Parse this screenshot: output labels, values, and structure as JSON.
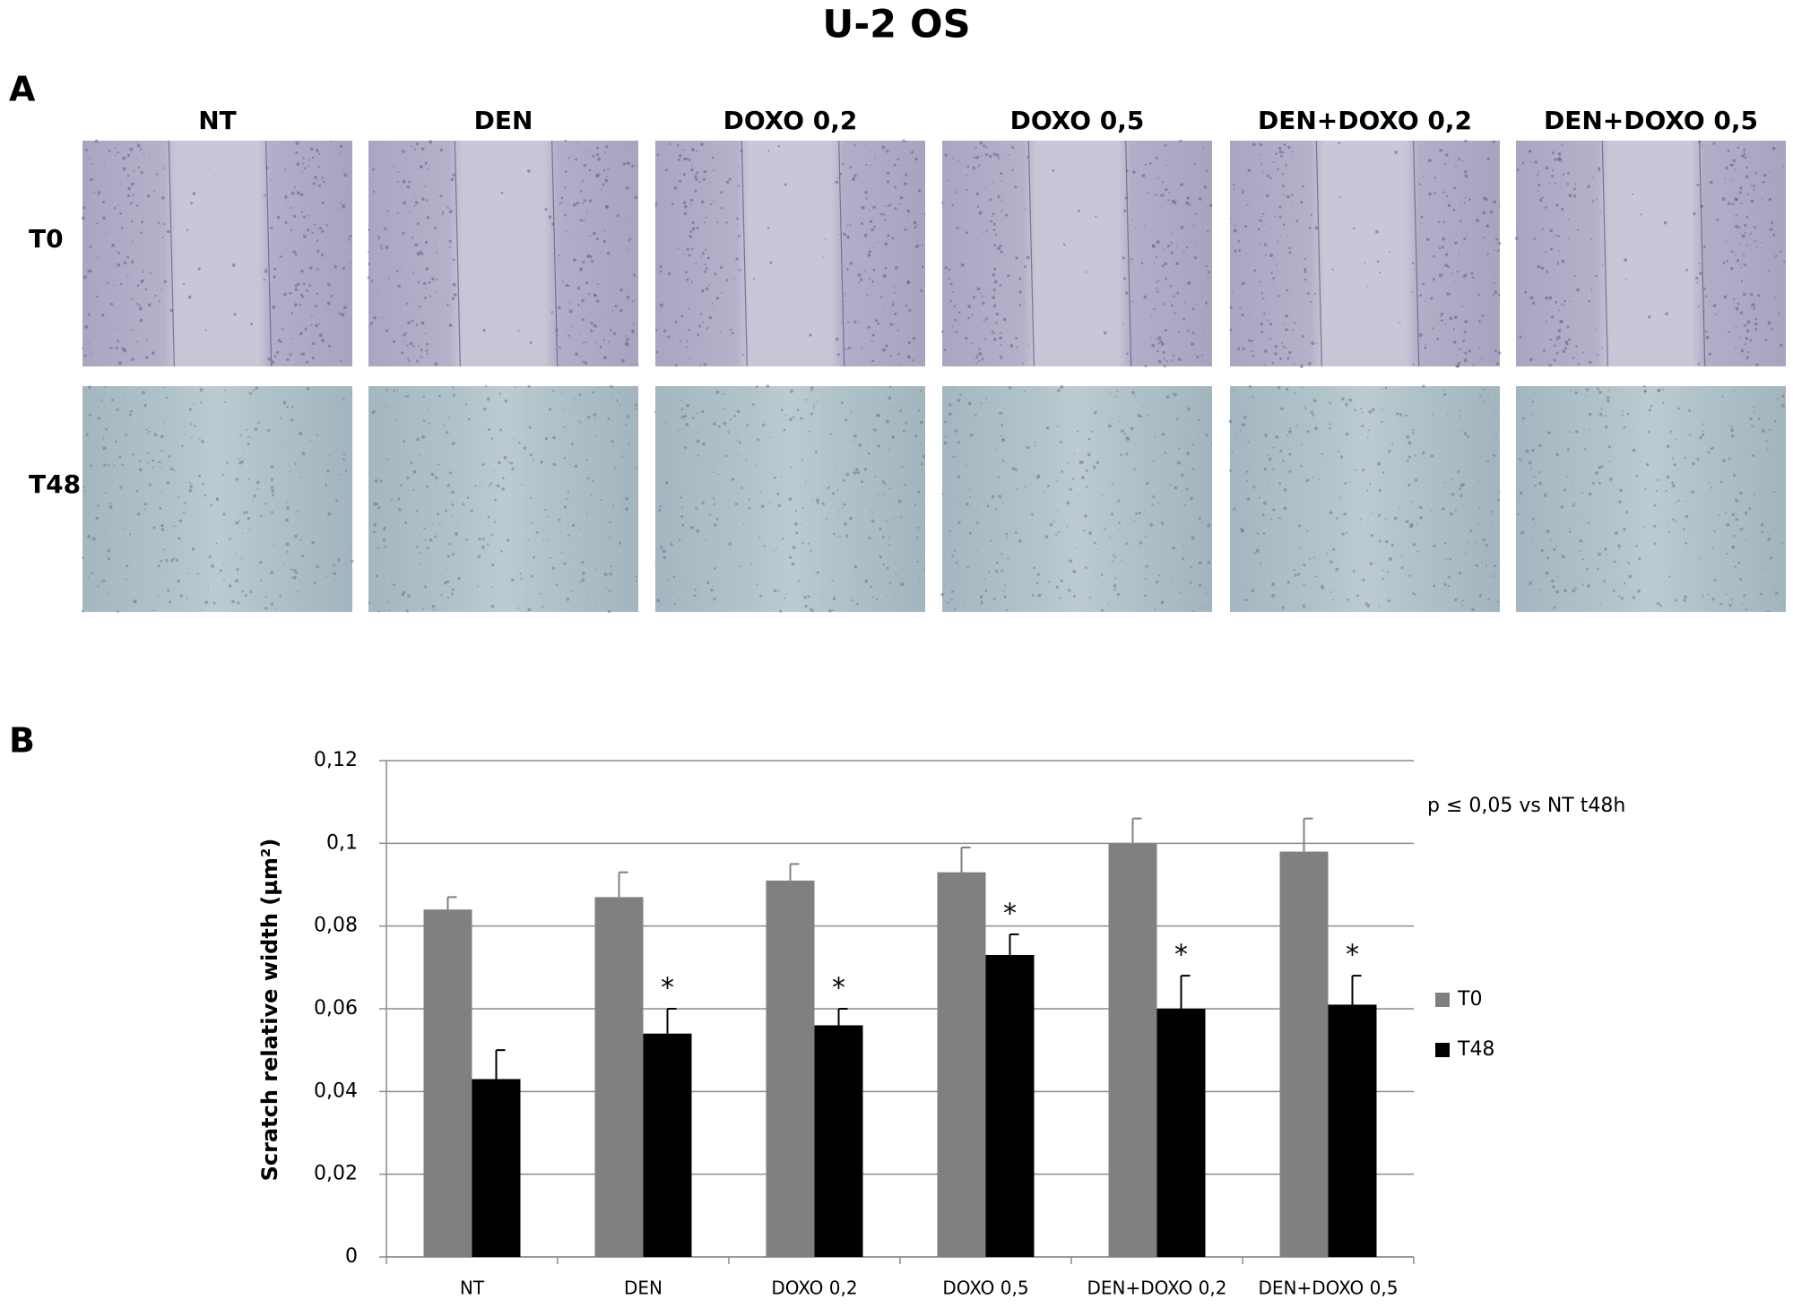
{
  "title": "U-2 OS",
  "panel_a": {
    "label": "A",
    "columns": [
      "NT",
      "DEN",
      "DOXO 0,2",
      "DOXO 0,5",
      "DEN+DOXO 0,2",
      "DEN+DOXO 0,5"
    ],
    "rows": [
      "T0",
      "T48"
    ]
  },
  "panel_b_label": "B",
  "chart_data": {
    "type": "bar",
    "y_label": "Scratch relative width (µm²)",
    "annotation": "p ≤ 0,05 vs NT t48h",
    "categories": [
      "NT",
      "DEN",
      "DOXO 0,2",
      "DOXO 0,5",
      "DEN+DOXO 0,2",
      "DEN+DOXO 0,5"
    ],
    "series": [
      {
        "name": "T0",
        "color": "#808080",
        "values": [
          0.084,
          0.087,
          0.091,
          0.093,
          0.1,
          0.098
        ],
        "errors": [
          0.003,
          0.006,
          0.004,
          0.006,
          0.006,
          0.008
        ]
      },
      {
        "name": "T48",
        "color": "#000000",
        "values": [
          0.043,
          0.054,
          0.056,
          0.073,
          0.06,
          0.061
        ],
        "errors": [
          0.007,
          0.006,
          0.004,
          0.005,
          0.008,
          0.007
        ],
        "significance": [
          null,
          "*",
          "*",
          "*",
          "*",
          "*"
        ]
      }
    ],
    "ylim": [
      0,
      0.12
    ],
    "yticks": [
      0,
      {
        "value": 0.02,
        "label": "0,02"
      },
      {
        "value": 0.04,
        "label": "0,04"
      },
      {
        "value": 0.06,
        "label": "0,06"
      },
      {
        "value": 0.08,
        "label": "0,08"
      },
      {
        "value": 0.1,
        "label": "0,1"
      },
      {
        "value": 0.12,
        "label": "0,12"
      }
    ],
    "grid": true,
    "legend": "right"
  }
}
